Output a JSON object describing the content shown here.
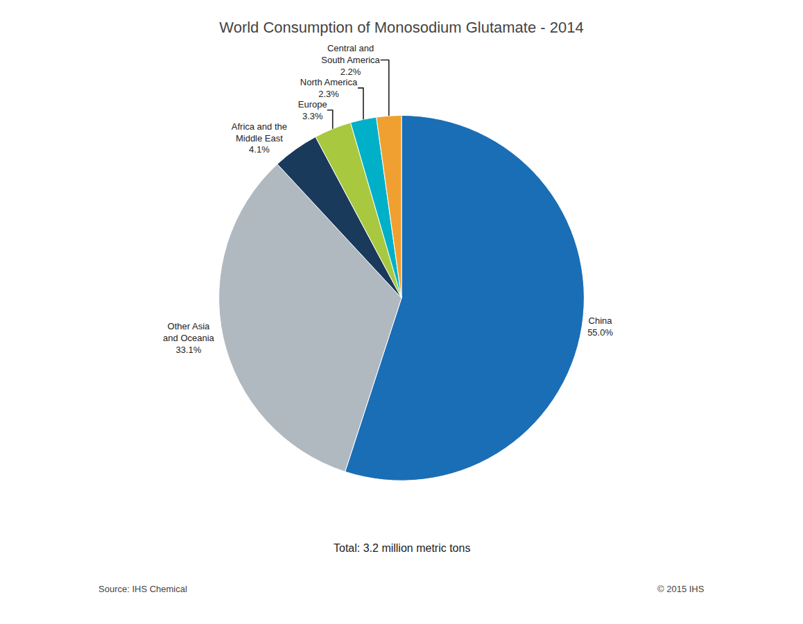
{
  "chart_data": {
    "type": "pie",
    "title": "World Consumption of Monosodium Glutamate - 2014",
    "subtitle": "Total: 3.2 million metric tons",
    "annotations": [
      "Source: IHS Chemical",
      "© 2015 IHS"
    ],
    "categories": [
      "China",
      "Other Asia\nand Oceania",
      "Africa and the\nMiddle East",
      "Europe",
      "North America",
      "Central and\nSouth America"
    ],
    "values": [
      55.0,
      33.1,
      4.1,
      3.3,
      2.3,
      2.2
    ],
    "value_labels": [
      "55.0%",
      "33.1%",
      "4.1%",
      "3.3%",
      "2.3%",
      "2.2%"
    ],
    "colors": [
      "#1a6eb5",
      "#b0b8c0",
      "#1a3a5c",
      "#a8c840",
      "#00b0c8",
      "#f0a030"
    ]
  }
}
